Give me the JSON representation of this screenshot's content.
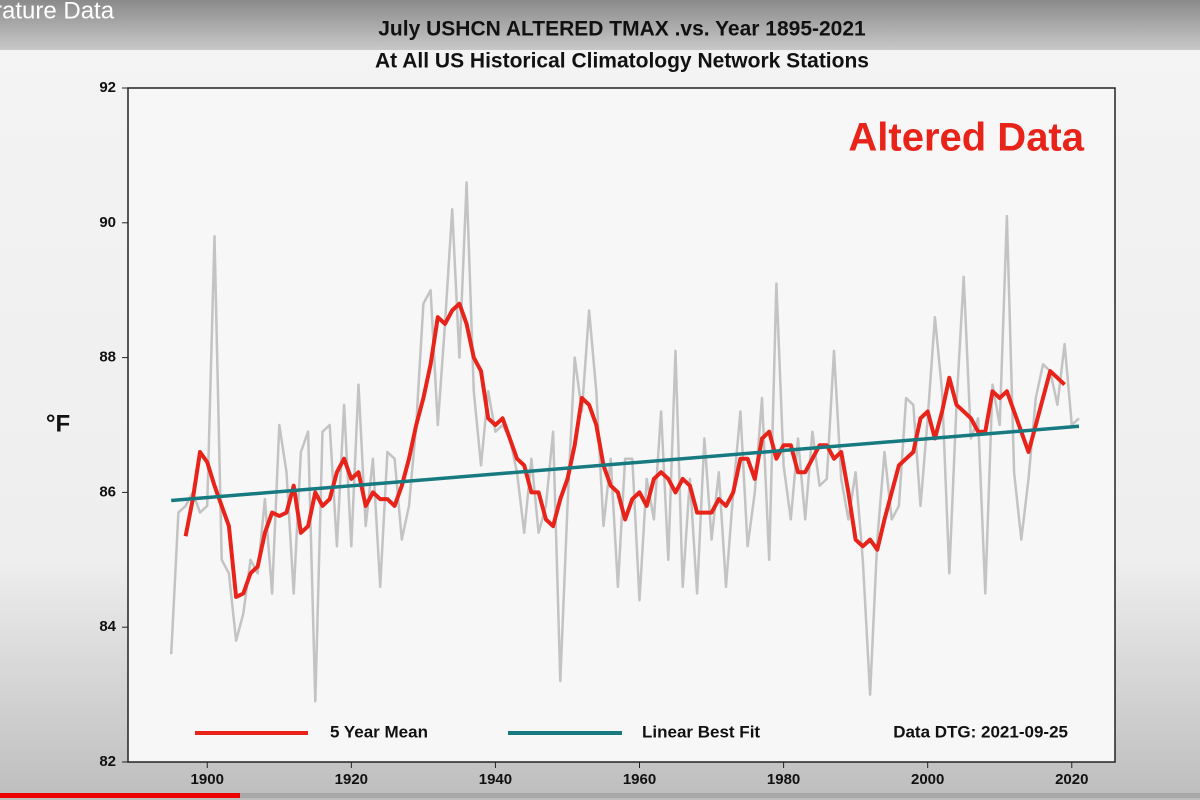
{
  "video_title": "rature Data",
  "chart_data": {
    "type": "line",
    "title": "July USHCN ALTERED TMAX .vs. Year 1895-2021",
    "subtitle": "At All US Historical Climatology Network Stations",
    "ylabel": "°F",
    "annotations": [
      "Altered Data",
      "Data DTG: 2021-09-25"
    ],
    "xlim": [
      1889,
      2026
    ],
    "xticks": [
      1900,
      1920,
      1940,
      1960,
      1980,
      2000,
      2020
    ],
    "ylim": [
      82,
      92
    ],
    "yticks": [
      82,
      84,
      86,
      88,
      90,
      92
    ],
    "legend": "bottom",
    "x": [
      1895,
      1896,
      1897,
      1898,
      1899,
      1900,
      1901,
      1902,
      1903,
      1904,
      1905,
      1906,
      1907,
      1908,
      1909,
      1910,
      1911,
      1912,
      1913,
      1914,
      1915,
      1916,
      1917,
      1918,
      1919,
      1920,
      1921,
      1922,
      1923,
      1924,
      1925,
      1926,
      1927,
      1928,
      1929,
      1930,
      1931,
      1932,
      1933,
      1934,
      1935,
      1936,
      1937,
      1938,
      1939,
      1940,
      1941,
      1942,
      1943,
      1944,
      1945,
      1946,
      1947,
      1948,
      1949,
      1950,
      1951,
      1952,
      1953,
      1954,
      1955,
      1956,
      1957,
      1958,
      1959,
      1960,
      1961,
      1962,
      1963,
      1964,
      1965,
      1966,
      1967,
      1968,
      1969,
      1970,
      1971,
      1972,
      1973,
      1974,
      1975,
      1976,
      1977,
      1978,
      1979,
      1980,
      1981,
      1982,
      1983,
      1984,
      1985,
      1986,
      1987,
      1988,
      1989,
      1990,
      1991,
      1992,
      1993,
      1994,
      1995,
      1996,
      1997,
      1998,
      1999,
      2000,
      2001,
      2002,
      2003,
      2004,
      2005,
      2006,
      2007,
      2008,
      2009,
      2010,
      2011,
      2012,
      2013,
      2014,
      2015,
      2016,
      2017,
      2018,
      2019,
      2020,
      2021
    ],
    "series": [
      {
        "color": "#c3c3c3",
        "values": [
          83.6,
          85.7,
          85.8,
          86.0,
          85.7,
          85.8,
          89.8,
          85.0,
          84.8,
          83.8,
          84.2,
          85.0,
          84.8,
          85.9,
          84.5,
          87.0,
          86.3,
          84.5,
          86.6,
          86.9,
          82.9,
          86.9,
          87.0,
          85.2,
          87.3,
          85.2,
          87.6,
          85.5,
          86.5,
          84.6,
          86.6,
          86.5,
          85.3,
          85.8,
          87.0,
          88.8,
          89.0,
          87.0,
          88.5,
          90.2,
          88.0,
          90.6,
          87.5,
          86.4,
          87.5,
          86.9,
          87.0,
          86.8,
          86.3,
          85.4,
          86.5,
          85.4,
          85.8,
          86.9,
          83.2,
          85.8,
          88.0,
          87.2,
          88.7,
          87.5,
          85.5,
          86.5,
          84.6,
          86.5,
          86.5,
          84.4,
          86.2,
          85.6,
          87.2,
          85.0,
          88.1,
          84.6,
          86.2,
          84.5,
          86.8,
          85.3,
          86.3,
          84.6,
          86.0,
          87.2,
          85.2,
          86.0,
          87.4,
          85.0,
          89.1,
          86.4,
          85.6,
          86.8,
          85.6,
          86.9,
          86.1,
          86.2,
          88.1,
          86.2,
          85.6,
          86.3,
          85.0,
          83.0,
          85.3,
          86.6,
          85.6,
          85.8,
          87.4,
          87.3,
          85.8,
          87.1,
          88.6,
          87.5,
          84.8,
          87.3,
          89.2,
          86.8,
          87.1,
          84.5,
          87.6,
          87.0,
          90.1,
          86.3,
          85.3,
          86.2,
          87.4,
          87.9,
          87.8,
          87.3,
          88.2,
          87.0,
          87.1
        ]
      },
      {
        "name": "5 Year Mean",
        "color": "#e8231a",
        "values": [
          null,
          null,
          85.35,
          85.9,
          86.6,
          86.45,
          86.1,
          85.8,
          85.5,
          84.45,
          84.5,
          84.8,
          84.9,
          85.4,
          85.7,
          85.65,
          85.7,
          86.1,
          85.4,
          85.5,
          86.0,
          85.8,
          85.9,
          86.3,
          86.5,
          86.2,
          86.3,
          85.8,
          86.0,
          85.9,
          85.9,
          85.8,
          86.1,
          86.5,
          87.0,
          87.4,
          87.9,
          88.6,
          88.5,
          88.7,
          88.8,
          88.5,
          88.0,
          87.8,
          87.1,
          87.0,
          87.1,
          86.8,
          86.5,
          86.4,
          86.0,
          86.0,
          85.6,
          85.5,
          85.9,
          86.2,
          86.7,
          87.4,
          87.3,
          87.0,
          86.4,
          86.1,
          86.0,
          85.6,
          85.9,
          86.0,
          85.8,
          86.2,
          86.3,
          86.2,
          86.0,
          86.2,
          86.1,
          85.7,
          85.7,
          85.7,
          85.9,
          85.8,
          86.0,
          86.5,
          86.5,
          86.2,
          86.8,
          86.9,
          86.5,
          86.7,
          86.7,
          86.3,
          86.3,
          86.5,
          86.7,
          86.7,
          86.5,
          86.6,
          86.0,
          85.3,
          85.2,
          85.3,
          85.15,
          85.6,
          86.0,
          86.4,
          86.5,
          86.6,
          87.1,
          87.2,
          86.8,
          87.2,
          87.7,
          87.3,
          87.2,
          87.1,
          86.9,
          86.9,
          87.5,
          87.4,
          87.5,
          87.2,
          86.9,
          86.6,
          87.0,
          87.4,
          87.8,
          87.7,
          87.6,
          null,
          null
        ]
      },
      {
        "name": "Linear Best Fit",
        "color": "#177a80",
        "x": [
          1895,
          2021
        ],
        "values": [
          85.88,
          86.98
        ]
      }
    ]
  }
}
